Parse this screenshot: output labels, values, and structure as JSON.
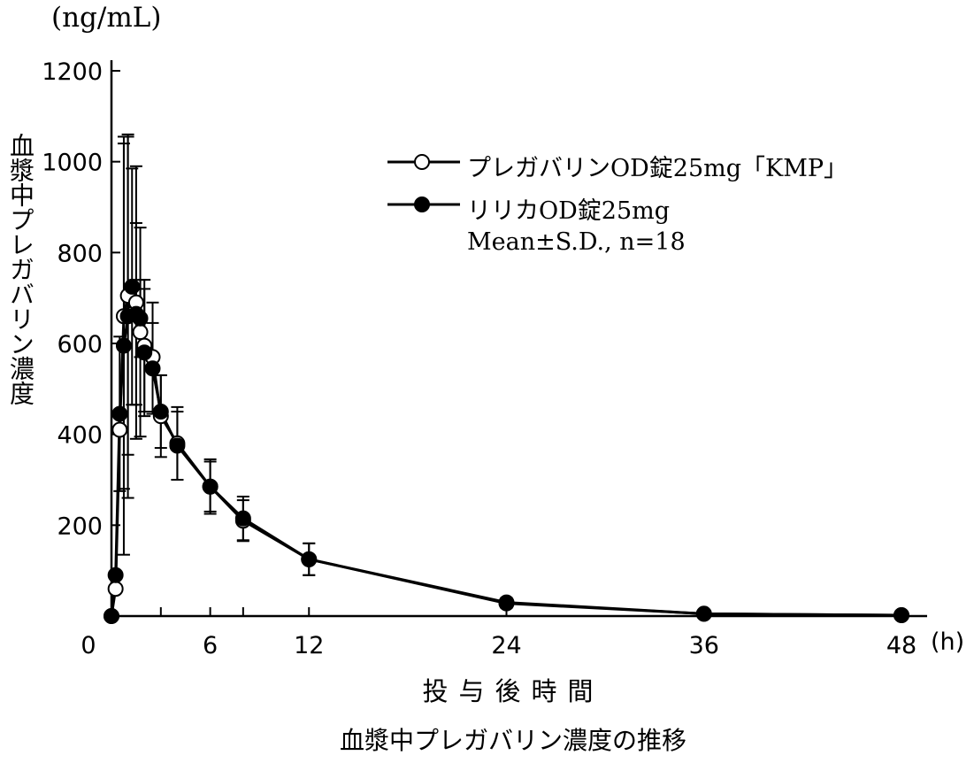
{
  "units": {
    "y": "(ng/mL)",
    "x": "(h)"
  },
  "axis_titles": {
    "y": "血漿中プレガバリン濃度",
    "x": "投与後時間"
  },
  "caption": "血漿中プレガバリン濃度の推移",
  "legend": {
    "series_a": "プレガバリンOD錠25mg「KMP」",
    "series_b": "リリカOD錠25mg",
    "stats": "Mean±S.D., n=18"
  },
  "chart_data": {
    "type": "line",
    "xlim": [
      0,
      48
    ],
    "ylim": [
      0,
      1200
    ],
    "x_ticks": [
      0,
      6,
      12,
      24,
      36,
      48
    ],
    "x_minor_ticks": [
      3,
      8
    ],
    "y_ticks": [
      200,
      400,
      600,
      800,
      1000,
      1200
    ],
    "grid": false,
    "legend_position": "top-right",
    "series": [
      {
        "name": "プレガバリンOD錠25mg「KMP」",
        "marker": "open-circle",
        "points": [
          {
            "x": 0,
            "y": 0
          },
          {
            "x": 0.25,
            "y": 60
          },
          {
            "x": 0.5,
            "y": 410
          },
          {
            "x": 0.75,
            "y": 660,
            "sd": 380
          },
          {
            "x": 1,
            "y": 705,
            "sd": 350
          },
          {
            "x": 1.25,
            "y": 665
          },
          {
            "x": 1.5,
            "y": 690,
            "sd": 300
          },
          {
            "x": 1.75,
            "y": 625,
            "sd": 230
          },
          {
            "x": 2,
            "y": 595,
            "sd": 145
          },
          {
            "x": 2.5,
            "y": 570,
            "sd": 120
          },
          {
            "x": 3,
            "y": 440,
            "sd": 90
          },
          {
            "x": 4,
            "y": 380,
            "sd": 80
          },
          {
            "x": 6,
            "y": 285,
            "sd": 60
          },
          {
            "x": 8,
            "y": 210,
            "sd": 45
          },
          {
            "x": 12,
            "y": 125,
            "sd": 35
          },
          {
            "x": 24,
            "y": 30,
            "sd": 10
          },
          {
            "x": 36,
            "y": 5
          },
          {
            "x": 48,
            "y": 2
          }
        ]
      },
      {
        "name": "リリカOD錠25mg",
        "marker": "filled-circle",
        "points": [
          {
            "x": 0,
            "y": 0
          },
          {
            "x": 0.25,
            "y": 90
          },
          {
            "x": 0.5,
            "y": 445,
            "sd": 170
          },
          {
            "x": 0.75,
            "y": 595,
            "sd": 460
          },
          {
            "x": 1,
            "y": 660,
            "sd": 400
          },
          {
            "x": 1.25,
            "y": 725,
            "sd": 260
          },
          {
            "x": 1.5,
            "y": 665,
            "sd": 200
          },
          {
            "x": 1.75,
            "y": 655,
            "sd": 85
          },
          {
            "x": 2,
            "y": 580,
            "sd": 140
          },
          {
            "x": 2.5,
            "y": 545,
            "sd": 100
          },
          {
            "x": 3,
            "y": 450,
            "sd": 80
          },
          {
            "x": 4,
            "y": 375,
            "sd": 75
          },
          {
            "x": 6,
            "y": 285,
            "sd": 55
          },
          {
            "x": 8,
            "y": 215,
            "sd": 48
          },
          {
            "x": 12,
            "y": 125,
            "sd": 35
          },
          {
            "x": 24,
            "y": 28,
            "sd": 10
          },
          {
            "x": 36,
            "y": 5
          },
          {
            "x": 48,
            "y": 2
          }
        ]
      }
    ]
  }
}
